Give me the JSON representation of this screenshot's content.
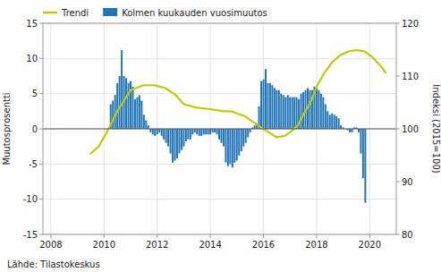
{
  "chart_data": {
    "type": "bar",
    "ylabel": "Muutosprosentti",
    "y2label": "Indeksi (2015=100)",
    "annotations": [
      "Lähde: Tilastokeskus"
    ],
    "xlim": [
      2007.7,
      2021.0
    ],
    "xticks": [
      2008,
      2010,
      2012,
      2014,
      2016,
      2018,
      2020
    ],
    "ylim": [
      -15,
      15
    ],
    "yticks": [
      -15,
      -10,
      -5,
      0,
      5,
      10,
      15
    ],
    "y2lim": [
      80,
      120
    ],
    "y2ticks": [
      80,
      90,
      100,
      110,
      120
    ],
    "grid": true,
    "legend": "top-left",
    "series": [
      {
        "name": "Trendi",
        "type": "line",
        "color": "#BFCC00",
        "x": [
          2009.5,
          2009.8,
          2010.1,
          2010.5,
          2011.0,
          2011.5,
          2011.9,
          2012.3,
          2012.7,
          2013.0,
          2013.5,
          2014.0,
          2014.5,
          2014.8,
          2015.0,
          2015.3,
          2015.6,
          2015.9,
          2016.2,
          2016.5,
          2016.8,
          2017.0,
          2017.3,
          2017.5,
          2017.8,
          2018.0,
          2018.3,
          2018.6,
          2018.9,
          2019.2,
          2019.5,
          2019.8,
          2020.1,
          2020.4,
          2020.6
        ],
        "values": [
          -3.5,
          -2.5,
          -0.5,
          2.5,
          5.5,
          6.2,
          6.2,
          5.8,
          4.8,
          3.5,
          3.0,
          2.8,
          2.5,
          2.5,
          2.2,
          1.8,
          1.0,
          0.2,
          -0.5,
          -1.2,
          -1.0,
          -0.5,
          0.5,
          2.0,
          4.0,
          6.0,
          8.0,
          9.5,
          10.5,
          11.0,
          11.2,
          11.0,
          10.2,
          9.0,
          8.0
        ]
      },
      {
        "name": "Kolmen kuukauden vuosimuutos",
        "type": "bar",
        "color": "#2175B6",
        "x": [
          2010.25,
          2010.3333333333,
          2010.4166666667,
          2010.5,
          2010.5833333333,
          2010.6666666667,
          2010.75,
          2010.8333333333,
          2010.9166666667,
          2011.0,
          2011.0833333333,
          2011.1666666667,
          2011.25,
          2011.3333333333,
          2011.4166666667,
          2011.5,
          2011.5833333333,
          2011.6666666667,
          2011.75,
          2011.8333333333,
          2011.9166666667,
          2012.0,
          2012.0833333333,
          2012.1666666667,
          2012.25,
          2012.3333333333,
          2012.4166666667,
          2012.5,
          2012.5833333333,
          2012.6666666667,
          2012.75,
          2012.8333333333,
          2012.9166666667,
          2013.0,
          2013.0833333333,
          2013.1666666667,
          2013.25,
          2013.3333333333,
          2013.4166666667,
          2013.5,
          2013.5833333333,
          2013.6666666667,
          2013.75,
          2013.8333333333,
          2013.9166666667,
          2014.0,
          2014.0833333333,
          2014.1666666667,
          2014.25,
          2014.3333333333,
          2014.4166666667,
          2014.5,
          2014.5833333333,
          2014.6666666667,
          2014.75,
          2014.8333333333,
          2014.9166666667,
          2015.0,
          2015.0833333333,
          2015.1666666667,
          2015.25,
          2015.3333333333,
          2015.4166666667,
          2015.5,
          2015.5833333333,
          2015.6666666667,
          2015.75,
          2015.8333333333,
          2015.9166666667,
          2016.0,
          2016.0833333333,
          2016.1666666667,
          2016.25,
          2016.3333333333,
          2016.4166666667,
          2016.5,
          2016.5833333333,
          2016.6666666667,
          2016.75,
          2016.8333333333,
          2016.9166666667,
          2017.0,
          2017.0833333333,
          2017.1666666667,
          2017.25,
          2017.3333333333,
          2017.4166666667,
          2017.5,
          2017.5833333333,
          2017.6666666667,
          2017.75,
          2017.8333333333,
          2017.9166666667,
          2018.0,
          2018.0833333333,
          2018.1666666667,
          2018.25,
          2018.3333333333,
          2018.4166666667,
          2018.5,
          2018.5833333333,
          2018.6666666667,
          2018.75,
          2018.8333333333,
          2018.9166666667,
          2019.0,
          2019.0833333333,
          2019.1666666667,
          2019.25,
          2019.3333333333,
          2019.4166666667,
          2019.5,
          2019.5833333333,
          2019.6666666667,
          2019.75,
          2019.8333333333
        ],
        "values": [
          3.5,
          4.0,
          4.8,
          6.5,
          7.5,
          11.2,
          7.5,
          7.2,
          6.5,
          6.8,
          6.0,
          4.2,
          4.5,
          4.8,
          4.0,
          2.0,
          1.2,
          0.5,
          -0.5,
          -0.8,
          -1.0,
          -0.8,
          -0.5,
          -1.0,
          -1.5,
          -2.0,
          -2.5,
          -3.5,
          -4.8,
          -4.5,
          -4.2,
          -3.5,
          -3.0,
          -2.5,
          -1.8,
          -1.5,
          -1.5,
          -0.8,
          -0.5,
          -0.8,
          -1.0,
          -1.0,
          -0.8,
          -0.8,
          -0.8,
          -0.8,
          -0.5,
          -0.5,
          -0.8,
          -1.5,
          -2.0,
          -2.5,
          -4.8,
          -5.3,
          -5.0,
          -5.5,
          -4.8,
          -4.5,
          -3.8,
          -3.2,
          -2.5,
          -2.0,
          -1.2,
          -0.5,
          0.2,
          0.5,
          0.8,
          3.2,
          6.8,
          7.0,
          8.5,
          6.5,
          6.5,
          6.2,
          5.8,
          5.5,
          5.5,
          5.0,
          4.8,
          4.5,
          4.8,
          4.5,
          4.5,
          4.5,
          4.5,
          4.2,
          5.0,
          5.2,
          5.5,
          5.8,
          5.5,
          5.5,
          6.0,
          6.0,
          5.5,
          5.0,
          4.5,
          3.5,
          2.5,
          2.0,
          2.2,
          2.0,
          1.8,
          1.5,
          0.5,
          0.2,
          0.0,
          -0.2,
          -0.5,
          -0.5,
          0.2,
          0.2,
          -0.5,
          -3.5,
          -7.0,
          -10.5
        ]
      }
    ]
  }
}
